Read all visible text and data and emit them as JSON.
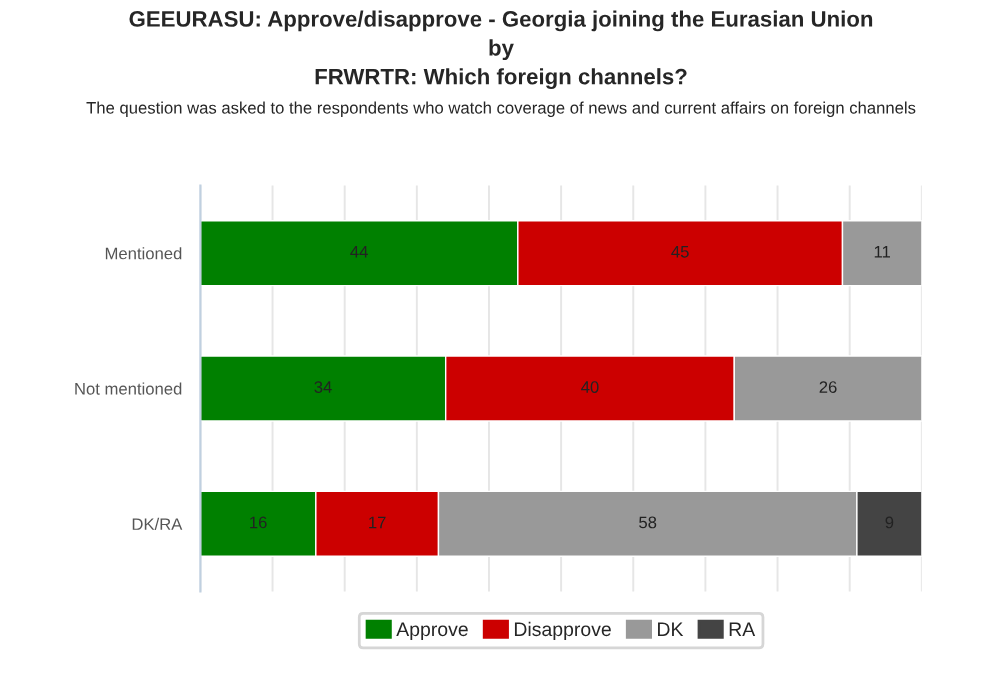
{
  "chart_data": {
    "type": "bar",
    "orientation": "horizontal",
    "stacked": true,
    "title": "GEEURASU: Approve/disapprove - Georgia joining the Eurasian Union\nby\nFRWRTR: Which foreign channels?",
    "subtitle": "The question was asked to the respondents who watch coverage of news and current affairs on foreign channels",
    "categories": [
      "Mentioned",
      "Not mentioned",
      "DK/RA"
    ],
    "series": [
      {
        "name": "Approve",
        "color": "#008000",
        "values": [
          44,
          34,
          16
        ]
      },
      {
        "name": "Disapprove",
        "color": "#cc0000",
        "values": [
          45,
          40,
          17
        ]
      },
      {
        "name": "DK",
        "color": "#999999",
        "values": [
          11,
          26,
          58
        ]
      },
      {
        "name": "RA",
        "color": "#444444",
        "values": [
          null,
          null,
          9
        ]
      }
    ],
    "xlim": [
      0,
      100
    ],
    "xticks": [
      {
        "value": 0,
        "label": null
      },
      {
        "value": 10,
        "label": null
      },
      {
        "value": 20,
        "label": null
      },
      {
        "value": 30,
        "label": null
      },
      {
        "value": 40,
        "label": null
      },
      {
        "value": 50,
        "label": null
      },
      {
        "value": 60,
        "label": null
      },
      {
        "value": 70,
        "label": null
      },
      {
        "value": 80,
        "label": null
      },
      {
        "value": 90,
        "label": null
      },
      {
        "value": 100,
        "label": null
      }
    ],
    "tick_labels": "y",
    "grid": "x",
    "legend": "bottom",
    "data_labels": true
  }
}
